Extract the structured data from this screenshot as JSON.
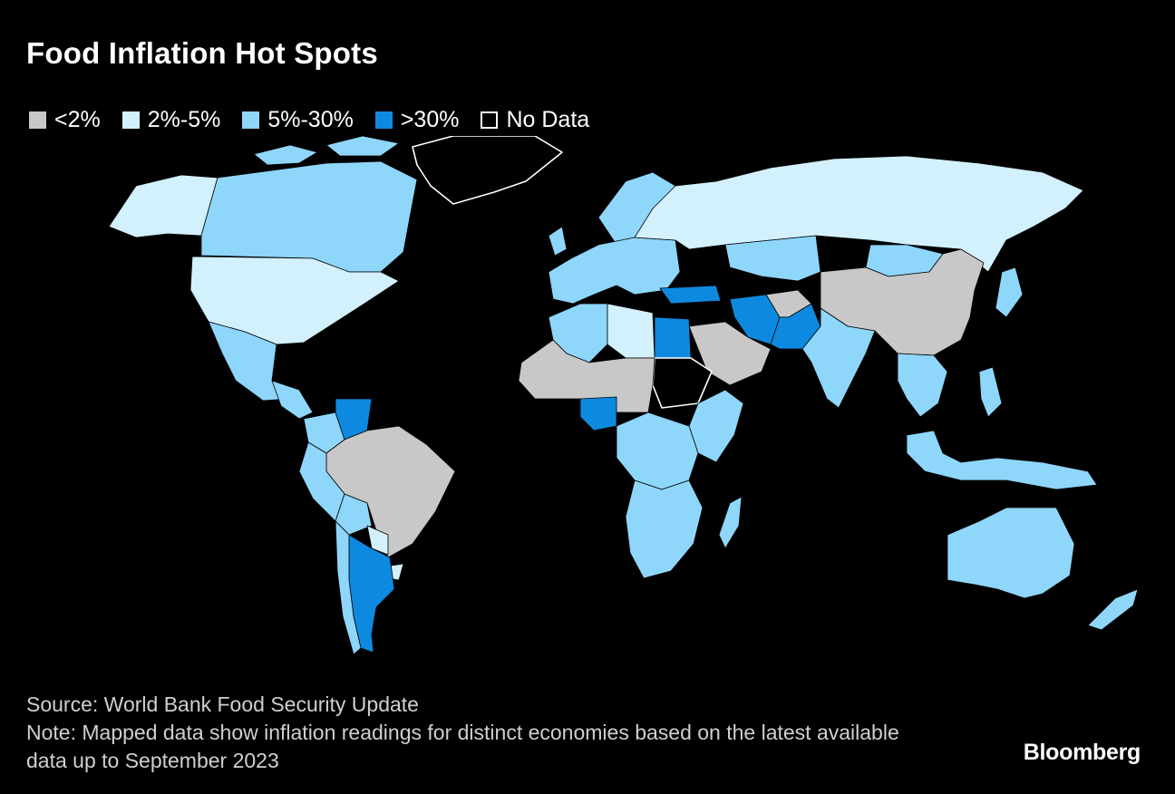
{
  "title": "Food Inflation Hot Spots",
  "legend": [
    {
      "label": "<2%",
      "color": "#c8c8c8"
    },
    {
      "label": "2%-5%",
      "color": "#d3f0fd"
    },
    {
      "label": "5%-30%",
      "color": "#8fd6fb"
    },
    {
      "label": ">30%",
      "color": "#0d8ae0"
    },
    {
      "label": "No Data",
      "color": "#000000"
    }
  ],
  "regions": [
    {
      "name": "Canada",
      "category": "5%-30%"
    },
    {
      "name": "Alaska",
      "category": "2%-5%"
    },
    {
      "name": "United States",
      "category": "2%-5%"
    },
    {
      "name": "Mexico",
      "category": "5%-30%"
    },
    {
      "name": "Greenland",
      "category": "No Data"
    },
    {
      "name": "Central America",
      "category": "5%-30%"
    },
    {
      "name": "Venezuela",
      "category": ">30%"
    },
    {
      "name": "Colombia",
      "category": "5%-30%"
    },
    {
      "name": "Brazil",
      "category": "<2%"
    },
    {
      "name": "Peru",
      "category": "5%-30%"
    },
    {
      "name": "Bolivia",
      "category": "5%-30%"
    },
    {
      "name": "Paraguay",
      "category": "2%-5%"
    },
    {
      "name": "Argentina",
      "category": ">30%"
    },
    {
      "name": "Chile",
      "category": "5%-30%"
    },
    {
      "name": "Uruguay",
      "category": "2%-5%"
    },
    {
      "name": "Russia",
      "category": "2%-5%"
    },
    {
      "name": "Europe",
      "category": "5%-30%"
    },
    {
      "name": "Scandinavia",
      "category": "5%-30%"
    },
    {
      "name": "Turkey",
      "category": ">30%"
    },
    {
      "name": "Kazakhstan",
      "category": "5%-30%"
    },
    {
      "name": "Mongolia",
      "category": "5%-30%"
    },
    {
      "name": "China",
      "category": "<2%"
    },
    {
      "name": "India",
      "category": "5%-30%"
    },
    {
      "name": "Iran",
      "category": ">30%"
    },
    {
      "name": "Pakistan",
      "category": ">30%"
    },
    {
      "name": "Afghanistan",
      "category": "<2%"
    },
    {
      "name": "Saudi Arabia",
      "category": "<2%"
    },
    {
      "name": "Egypt",
      "category": ">30%"
    },
    {
      "name": "Libya",
      "category": "2%-5%"
    },
    {
      "name": "Algeria",
      "category": "5%-30%"
    },
    {
      "name": "Sudan",
      "category": "No Data"
    },
    {
      "name": "Nigeria",
      "category": ">30%"
    },
    {
      "name": "Sahel",
      "category": "<2%"
    },
    {
      "name": "East Africa",
      "category": "5%-30%"
    },
    {
      "name": "Central Africa",
      "category": "5%-30%"
    },
    {
      "name": "Southern Africa",
      "category": "5%-30%"
    },
    {
      "name": "Madagascar",
      "category": "5%-30%"
    },
    {
      "name": "Southeast Asia",
      "category": "5%-30%"
    },
    {
      "name": "Indonesia",
      "category": "5%-30%"
    },
    {
      "name": "Japan",
      "category": "5%-30%"
    },
    {
      "name": "Australia",
      "category": "5%-30%"
    },
    {
      "name": "New Zealand",
      "category": "5%-30%"
    }
  ],
  "source": "Source: World Bank Food Security Update",
  "note": "Note: Mapped data show inflation readings for distinct economies based on the latest available data up to September 2023",
  "brand": "Bloomberg"
}
